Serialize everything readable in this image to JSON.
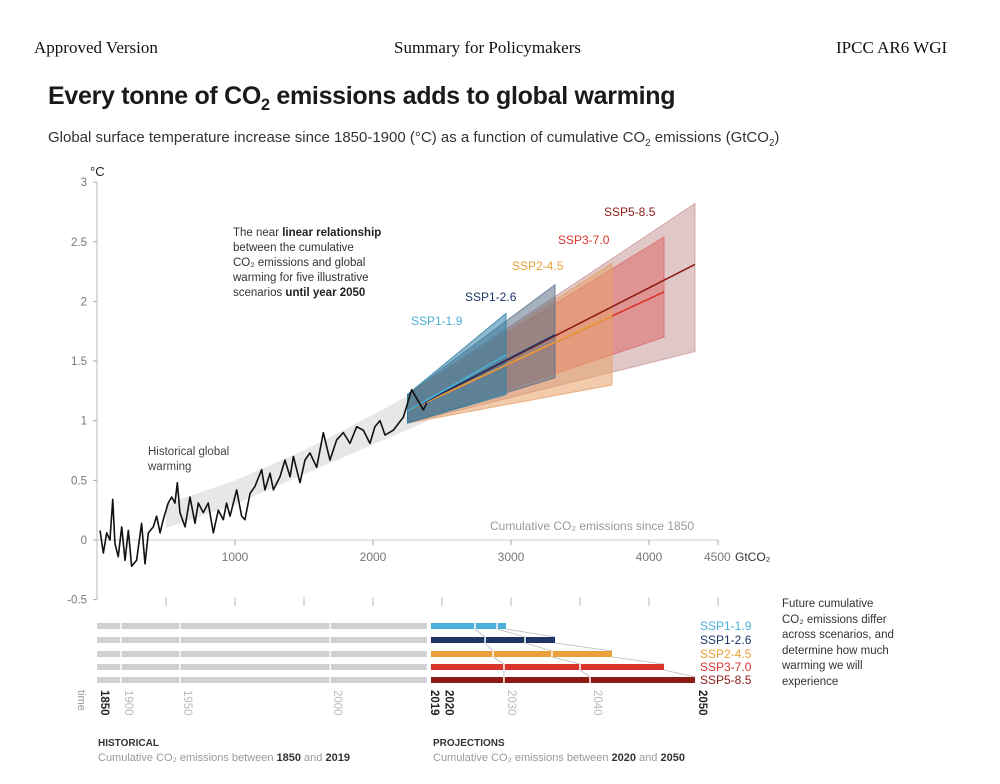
{
  "header": {
    "left": "Approved Version",
    "center": "Summary for Policymakers",
    "right": "IPCC AR6 WGI"
  },
  "title": {
    "pre": "Every tonne of CO",
    "sub": "2",
    "post": " emissions adds to global warming"
  },
  "subtitle": {
    "pre": "Global surface temperature increase since 1850-1900 (°C) as a function of cumulative CO",
    "sub": "2",
    "mid": " emissions (GtCO",
    "sub2": "2",
    "post": ")"
  },
  "annotations": {
    "linear": [
      [
        {
          "t": "The near "
        },
        {
          "t": "linear relationship",
          "b": true
        }
      ],
      [
        {
          "t": "between the cumulative"
        }
      ],
      [
        {
          "t": "CO₂ emissions and global"
        }
      ],
      [
        {
          "t": "warming for five illustrative"
        }
      ],
      [
        {
          "t": "scenarios "
        },
        {
          "t": "until year 2050",
          "b": true
        }
      ]
    ],
    "historical": [
      "Historical global",
      "warming"
    ],
    "future": [
      "Future cumulative",
      "CO₂ emissions differ",
      "across scenarios, and",
      "determine how much",
      "warming we will",
      "experience"
    ],
    "xaxis_caption": "Cumulative CO₂ emissions since 1850",
    "historical_head": "HISTORICAL",
    "historical_caption": [
      {
        "t": "Cumulative CO₂ emissions between "
      },
      {
        "t": "1850",
        "b": true
      },
      {
        "t": " and "
      },
      {
        "t": "2019",
        "b": true
      }
    ],
    "projections_head": "PROJECTIONS",
    "projections_caption": [
      {
        "t": "Cumulative CO₂ emissions between "
      },
      {
        "t": "2020",
        "b": true
      },
      {
        "t": " and "
      },
      {
        "t": "2050",
        "b": true
      }
    ]
  },
  "chart_data": {
    "type": "line",
    "title": "Every tonne of CO2 emissions adds to global warming",
    "xlabel": "Cumulative CO2 emissions since 1850 (GtCO2)",
    "ylabel": "°C",
    "y_unit_label": "°C",
    "x_unit_label": "GtCO₂",
    "xlim": [
      0,
      4500
    ],
    "ylim": [
      -0.5,
      3
    ],
    "xticks": [
      1000,
      2000,
      3000,
      4000,
      4500
    ],
    "xtick_labels": [
      "1000",
      "2000",
      "3000",
      "4000",
      "4500"
    ],
    "yticks": [
      -0.5,
      0,
      0.5,
      1,
      1.5,
      2,
      2.5,
      3
    ],
    "ytick_labels": [
      "-0.5",
      "0",
      "0.5",
      "1",
      "1.5",
      "2",
      "2.5",
      "3"
    ],
    "historical": {
      "name": "Historical global warming",
      "x": [
        22,
        46,
        70,
        94,
        114,
        130,
        154,
        179,
        203,
        227,
        251,
        287,
        323,
        348,
        372,
        408,
        432,
        457,
        480,
        516,
        541,
        565,
        582,
        601,
        638,
        674,
        710,
        734,
        770,
        806,
        843,
        879,
        915,
        939,
        964,
        1012,
        1048,
        1072,
        1109,
        1145,
        1193,
        1217,
        1254,
        1278,
        1326,
        1362,
        1399,
        1423,
        1471,
        1507,
        1543,
        1592,
        1640,
        1688,
        1737,
        1785,
        1833,
        1882,
        1930,
        1978,
        2014,
        2051,
        2087,
        2147,
        2220,
        2280,
        2365,
        2390
      ],
      "y": [
        0.08,
        -0.11,
        0.06,
        0,
        0.34,
        -0.03,
        -0.14,
        0.11,
        -0.17,
        0.08,
        -0.22,
        -0.17,
        0.14,
        -0.2,
        0.06,
        0.11,
        0.2,
        0.06,
        0.17,
        0.31,
        0.36,
        0.31,
        0.48,
        0.23,
        0.11,
        0.36,
        0.14,
        0.31,
        0.23,
        0.31,
        0.06,
        0.25,
        0.17,
        0.31,
        0.2,
        0.42,
        0.2,
        0.17,
        0.39,
        0.45,
        0.59,
        0.42,
        0.56,
        0.42,
        0.53,
        0.67,
        0.53,
        0.7,
        0.48,
        0.67,
        0.73,
        0.61,
        0.9,
        0.67,
        0.84,
        0.9,
        0.81,
        0.95,
        0.92,
        0.81,
        0.95,
        1.0,
        0.88,
        0.92,
        1.03,
        1.26,
        1.09,
        1.15
      ],
      "range_x": [
        500,
        1000,
        1500,
        2000,
        2400
      ],
      "range_low": [
        0.1,
        0.3,
        0.55,
        0.8,
        1.0
      ],
      "range_high": [
        0.3,
        0.5,
        0.75,
        1.05,
        1.3
      ]
    },
    "projection_start": {
      "x": 2250,
      "low": 0.98,
      "high": 1.22,
      "central": 1.08
    },
    "series": [
      {
        "name": "SSP1-1.9",
        "color": "#4bb0d9",
        "band": "#2f7fa6",
        "end_x": 2964,
        "end_central": 1.55,
        "end_low": 1.22,
        "end_high": 1.9,
        "bar_2030": 2739,
        "bar_2040": 2899,
        "bar_2050": 2964
      },
      {
        "name": "SSP1-2.6",
        "color": "#1d3567",
        "band": "#5d7188",
        "end_x": 3319,
        "end_central": 1.72,
        "end_low": 1.36,
        "end_high": 2.14,
        "bar_2030": 2812,
        "bar_2040": 3101,
        "bar_2050": 3319
      },
      {
        "name": "SSP2-4.5",
        "color": "#e9a038",
        "band": "#e8a06a",
        "end_x": 3732,
        "end_central": 1.88,
        "end_low": 1.3,
        "end_high": 2.32,
        "bar_2030": 2870,
        "bar_2040": 3297,
        "bar_2050": 3732
      },
      {
        "name": "SSP3-7.0",
        "color": "#d9342b",
        "band": "#de6a6a",
        "end_x": 4109,
        "end_central": 2.08,
        "end_low": 1.7,
        "end_high": 2.54,
        "bar_2030": 2949,
        "bar_2040": 3500,
        "bar_2050": 4109
      },
      {
        "name": "SSP5-8.5",
        "color": "#8e1a15",
        "band": "#c99a9a",
        "end_x": 4333,
        "end_central": 2.31,
        "end_low": 1.58,
        "end_high": 2.82,
        "bar_2030": 2949,
        "bar_2040": 3572,
        "bar_2050": 4333
      }
    ],
    "bars": {
      "historical_end": 2390,
      "projection_start": 2420,
      "time_axis_label": "time",
      "time_ticks": [
        {
          "label": "1850",
          "x": 0,
          "bold": true
        },
        {
          "label": "1900",
          "x": 174,
          "bold": false
        },
        {
          "label": "1950",
          "x": 600,
          "bold": false
        },
        {
          "label": "2000",
          "x": 1690,
          "bold": false
        },
        {
          "label": "2019",
          "x": 2390,
          "bold": true
        },
        {
          "label": "2020",
          "x": 2440,
          "bold": true
        },
        {
          "label": "2030",
          "x": 2949,
          "bold": false
        },
        {
          "label": "2040",
          "x": 3572,
          "bold": false
        },
        {
          "label": "2050",
          "x": 4333,
          "bold": true
        }
      ]
    }
  }
}
